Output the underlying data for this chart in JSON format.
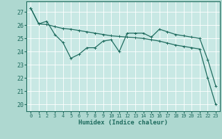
{
  "line1_x": [
    0,
    1,
    2,
    3,
    4,
    5,
    6,
    7,
    8,
    9,
    10,
    11,
    12,
    13,
    14,
    15,
    16,
    17,
    18,
    19,
    20,
    21,
    22,
    23
  ],
  "line1_y": [
    27.3,
    26.1,
    26.3,
    25.3,
    24.7,
    23.5,
    23.8,
    24.3,
    24.3,
    24.8,
    24.9,
    24.0,
    25.4,
    25.4,
    25.4,
    25.1,
    25.7,
    25.5,
    25.3,
    25.2,
    25.1,
    25.0,
    23.4,
    21.4
  ],
  "line2_x": [
    0,
    1,
    2,
    3,
    4,
    5,
    6,
    7,
    8,
    9,
    10,
    11,
    12,
    13,
    14,
    15,
    16,
    17,
    18,
    19,
    20,
    21,
    22,
    23
  ],
  "line2_y": [
    27.3,
    26.1,
    26.05,
    25.9,
    25.75,
    25.7,
    25.6,
    25.5,
    25.4,
    25.3,
    25.2,
    25.15,
    25.1,
    25.05,
    25.0,
    24.9,
    24.8,
    24.65,
    24.5,
    24.4,
    24.3,
    24.2,
    22.0,
    20.0
  ],
  "line_color": "#1e6b5e",
  "bg_color": "#aed8d0",
  "plot_bg_color": "#c8e8e4",
  "grid_color": "#ffffff",
  "xlabel": "Humidex (Indice chaleur)",
  "ylim": [
    19.5,
    27.8
  ],
  "xlim": [
    -0.5,
    23.5
  ],
  "yticks": [
    20,
    21,
    22,
    23,
    24,
    25,
    26,
    27
  ],
  "xticks": [
    0,
    1,
    2,
    3,
    4,
    5,
    6,
    7,
    8,
    9,
    10,
    11,
    12,
    13,
    14,
    15,
    16,
    17,
    18,
    19,
    20,
    21,
    22,
    23
  ],
  "marker_size": 2.5,
  "linewidth": 0.9
}
